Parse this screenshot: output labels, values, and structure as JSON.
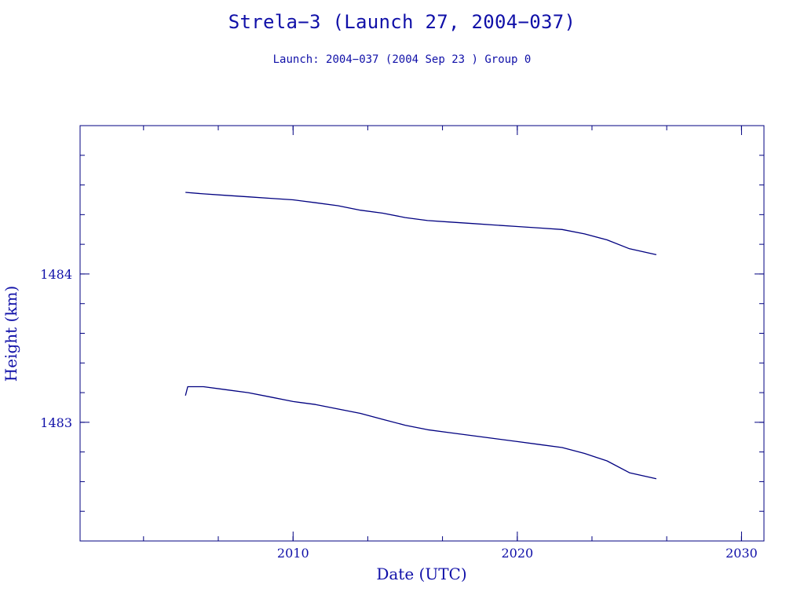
{
  "page": {
    "title": "Strela−3 (Launch 27, 2004−037)",
    "subtitle": "Launch: 2004−037  (2004 Sep 23 )  Group 0"
  },
  "colors": {
    "text": "#1010a8",
    "line": "#000080",
    "frame": "#000080",
    "background": "#ffffff"
  },
  "chart_data": {
    "type": "line",
    "xlabel": "Date (UTC)",
    "ylabel": "Height (km)",
    "xlim": [
      2000.5,
      2031
    ],
    "ylim": [
      1482.2,
      1485.0
    ],
    "x_ticks": [
      2010,
      2020,
      2030
    ],
    "x_tick_labels": [
      "2010",
      "2020",
      "2030"
    ],
    "y_ticks": [
      1483,
      1484
    ],
    "y_tick_labels": [
      "1483",
      "1484"
    ],
    "grid": false,
    "legend": "none",
    "series": [
      {
        "x": [
          2005.2,
          2006.0,
          2007.0,
          2008.0,
          2009.0,
          2010.0,
          2011.0,
          2012.0,
          2013.0,
          2014.0,
          2015.0,
          2016.0,
          2017.0,
          2018.0,
          2019.0,
          2020.0,
          2021.0,
          2022.0,
          2023.0,
          2024.0,
          2025.0,
          2026.2
        ],
        "y": [
          1484.55,
          1484.54,
          1484.53,
          1484.52,
          1484.51,
          1484.5,
          1484.48,
          1484.46,
          1484.43,
          1484.41,
          1484.38,
          1484.36,
          1484.35,
          1484.34,
          1484.33,
          1484.32,
          1484.31,
          1484.3,
          1484.27,
          1484.23,
          1484.17,
          1484.13
        ]
      },
      {
        "x": [
          2005.2,
          2005.3,
          2006.0,
          2007.0,
          2008.0,
          2009.0,
          2010.0,
          2011.0,
          2012.0,
          2013.0,
          2014.0,
          2015.0,
          2016.0,
          2017.0,
          2018.0,
          2019.0,
          2020.0,
          2021.0,
          2022.0,
          2023.0,
          2024.0,
          2025.0,
          2026.2
        ],
        "y": [
          1483.18,
          1483.24,
          1483.24,
          1483.22,
          1483.2,
          1483.17,
          1483.14,
          1483.12,
          1483.09,
          1483.06,
          1483.02,
          1482.98,
          1482.95,
          1482.93,
          1482.91,
          1482.89,
          1482.87,
          1482.85,
          1482.83,
          1482.79,
          1482.74,
          1482.66,
          1482.62
        ]
      }
    ]
  }
}
